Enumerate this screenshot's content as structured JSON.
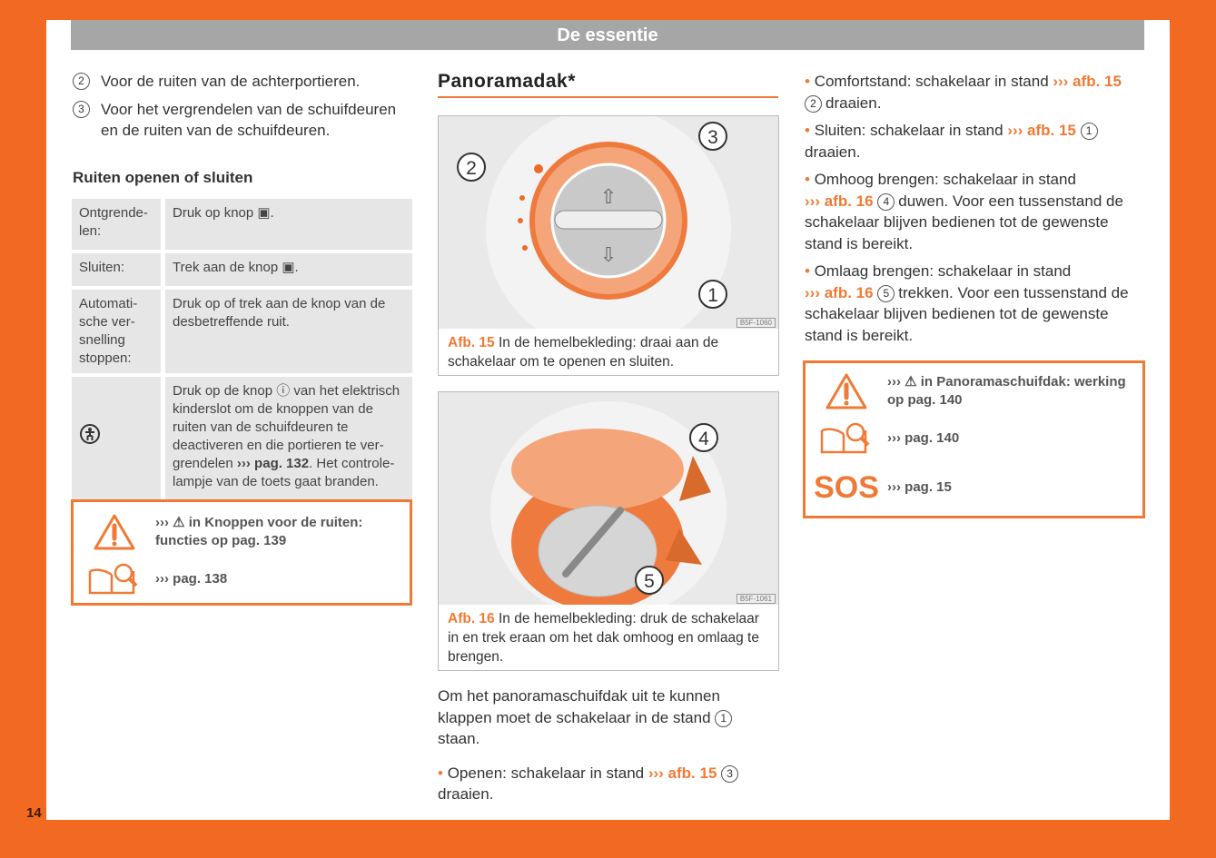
{
  "header": {
    "title": "De essentie"
  },
  "page_number": "14",
  "left": {
    "items": [
      {
        "n": "2",
        "text": "Voor de ruiten van de achterportieren."
      },
      {
        "n": "3",
        "text": "Voor het vergrendelen van de schuifdeu­ren en de ruiten van de schuifdeuren."
      }
    ],
    "heading": "Ruiten openen of sluiten",
    "table": [
      {
        "key": "Ontgrende­len:",
        "value": "Druk op knop ▣."
      },
      {
        "key": "Sluiten:",
        "value": "Trek aan de knop ▣."
      },
      {
        "key": "Automati­sche ver­snelling stoppen:",
        "value": "Druk op of trek aan de knop van de desbetreffende ruit."
      },
      {
        "key_icon": "child-lock-icon",
        "value_pre": "Druk op de knop ⓘ van het elek­trisch kinderslot om de knoppen van de ruiten van de schuifdeuren te deactiveren en die portieren te ver­grendelen ",
        "value_ref": "››› pag. 132",
        "value_post": ". Het controle­lampje van de toets gaat branden."
      }
    ],
    "box": {
      "warning": "››› ⚠ in Knoppen voor de ruiten: functies op pag. 139",
      "manual": "››› pag. 138"
    }
  },
  "middle": {
    "heading": "Panoramadak*",
    "fig15": {
      "code": "B5F-1060",
      "label": "Afb. 15",
      "caption": "In de hemelbekleding: draai aan de schakelaar om te openen en sluiten.",
      "callouts": [
        "1",
        "2",
        "3"
      ]
    },
    "fig16": {
      "code": "B5F-1061",
      "label": "Afb. 16",
      "caption": "In de hemelbekleding: druk de schake­laar in en trek eraan om het dak omhoog en omlaag te brengen.",
      "callouts": [
        "4",
        "5"
      ]
    },
    "para1": "Om het panoramaschuifdak uit te kunnen klappen moet de schakelaar in de stand",
    "para1_num": "1",
    "para1_end": "staan.",
    "bullet1": "Openen: schakelaar in stand",
    "bullet1_ref": "››› afb. 15",
    "bullet1_num": "3",
    "bullet1_end": "draaien."
  },
  "right": {
    "bullets": [
      {
        "pre": "Comfortstand: schakelaar in stand",
        "ref": "››› afb. 15",
        "num": "2",
        "post": "draaien."
      },
      {
        "pre": "Sluiten: schakelaar in stand",
        "ref": "››› afb. 15",
        "num": "1",
        "post": "draaien."
      },
      {
        "pre": "Omhoog brengen: schakelaar in stand",
        "ref": "››› afb. 16",
        "num": "4",
        "post": "duwen. Voor een tussenstand de schakelaar blijven bedienen tot de ge­wenste stand is bereikt."
      },
      {
        "pre": "Omlaag brengen: schakelaar in stand",
        "ref": "››› afb. 16",
        "num": "5",
        "post": "trekken. Voor een tussenstand de schakelaar blijven bedienen tot de ge­wenste stand is bereikt."
      }
    ],
    "box": {
      "warning": "››› ⚠ in Panoramaschuifdak: werking op pag. 140",
      "manual": "››› pag. 140",
      "sos_label": "SOS",
      "sos": "››› pag. 15"
    }
  },
  "colors": {
    "accent": "#f26a22",
    "header": "#a6a6a6"
  }
}
